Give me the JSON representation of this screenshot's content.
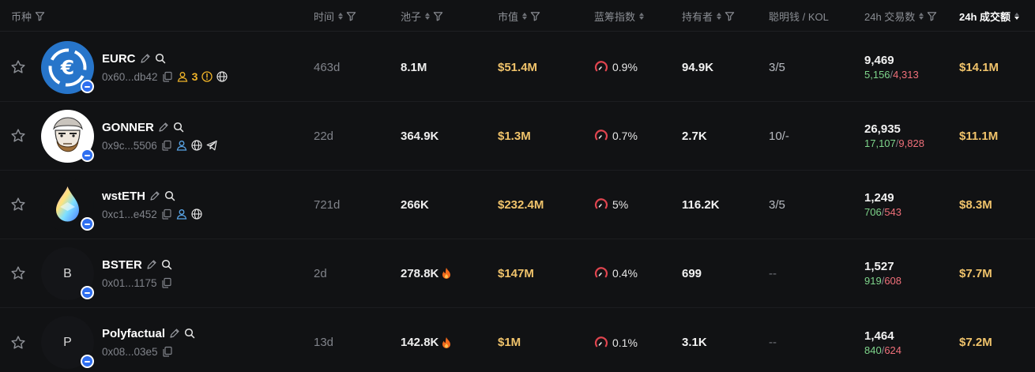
{
  "header": {
    "token": "币种",
    "age": "时间",
    "pool": "池子",
    "mcap": "市值",
    "bluechip": "蓝筹指数",
    "holders": "持有者",
    "smart": "聪明钱 / KOL",
    "txs": "24h 交易数",
    "volume": "24h 成交额"
  },
  "colors": {
    "background": "#111214",
    "accent_yellow": "#f0c36b",
    "buy_green": "#7ed58b",
    "sell_red": "#f0707a",
    "muted": "#80838a",
    "chain_blue": "#2f6ff0"
  },
  "rows": [
    {
      "name": "EURC",
      "address": "0x60...db42",
      "logo": "eurc-logo",
      "holder_badge": "3",
      "age": "463d",
      "pool": "8.1M",
      "mcap": "$51.4M",
      "bluechip": "0.9%",
      "holders": "94.9K",
      "smart": "3/5",
      "tx_total": "9,469",
      "tx_buy": "5,156",
      "tx_sell": "4,313",
      "volume": "$14.1M"
    },
    {
      "name": "GONNER",
      "address": "0x9c...5506",
      "logo": "gonner-logo",
      "age": "22d",
      "pool": "364.9K",
      "mcap": "$1.3M",
      "bluechip": "0.7%",
      "holders": "2.7K",
      "smart": "10/-",
      "tx_total": "26,935",
      "tx_buy": "17,107",
      "tx_sell": "9,828",
      "volume": "$11.1M"
    },
    {
      "name": "wstETH",
      "address": "0xc1...e452",
      "logo": "wsteth-logo",
      "age": "721d",
      "pool": "266K",
      "mcap": "$232.4M",
      "bluechip": "5%",
      "holders": "116.2K",
      "smart": "3/5",
      "tx_total": "1,249",
      "tx_buy": "706",
      "tx_sell": "543",
      "volume": "$8.3M"
    },
    {
      "name": "BSTER",
      "address": "0x01...1175",
      "logo_letter": "B",
      "age": "2d",
      "pool": "278.8K",
      "mcap": "$147M",
      "bluechip": "0.4%",
      "holders": "699",
      "smart": "--",
      "tx_total": "1,527",
      "tx_buy": "919",
      "tx_sell": "608",
      "volume": "$7.7M"
    },
    {
      "name": "Polyfactual",
      "address": "0x08...03e5",
      "logo_letter": "P",
      "age": "13d",
      "pool": "142.8K",
      "mcap": "$1M",
      "bluechip": "0.1%",
      "holders": "3.1K",
      "smart": "--",
      "tx_total": "1,464",
      "tx_buy": "840",
      "tx_sell": "624",
      "volume": "$7.2M"
    }
  ]
}
